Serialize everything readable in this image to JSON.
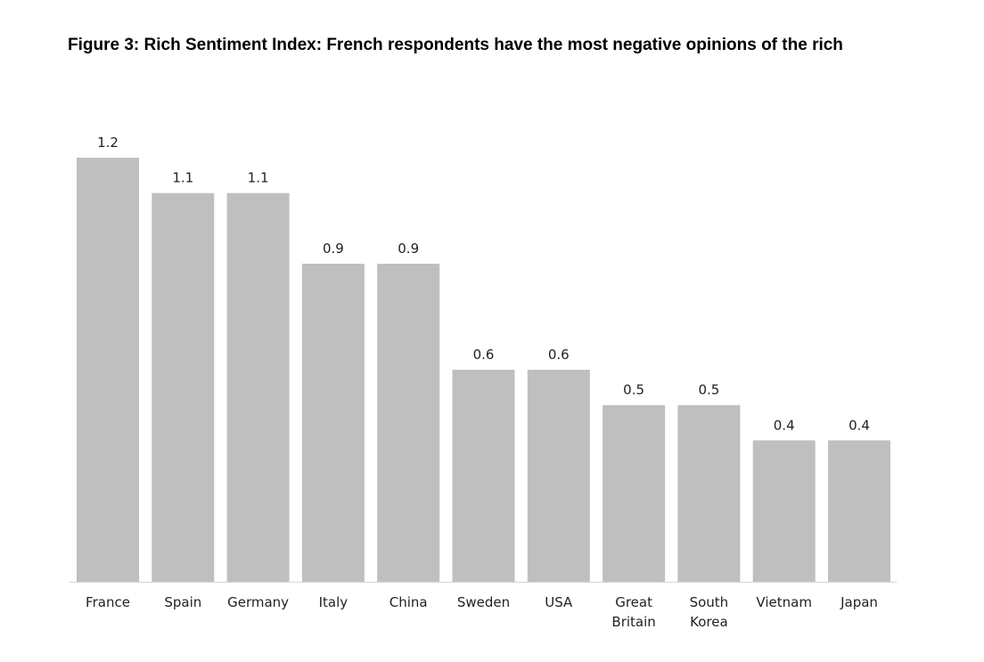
{
  "figure": {
    "title": "Figure 3: Rich Sentiment Index: French respondents have the most negative opinions of the rich"
  },
  "chart_data": {
    "type": "bar",
    "title": "Figure 3: Rich Sentiment Index: French respondents have the most negative opinions of the rich",
    "xlabel": "",
    "ylabel": "",
    "categories": [
      "France",
      "Spain",
      "Germany",
      "Italy",
      "China",
      "Sweden",
      "USA",
      "Great Britain",
      "South Korea",
      "Vietnam",
      "Japan"
    ],
    "category_lines": [
      [
        "France"
      ],
      [
        "Spain"
      ],
      [
        "Germany"
      ],
      [
        "Italy"
      ],
      [
        "China"
      ],
      [
        "Sweden"
      ],
      [
        "USA"
      ],
      [
        "Great",
        "Britain"
      ],
      [
        "South",
        "Korea"
      ],
      [
        "Vietnam"
      ],
      [
        "Japan"
      ]
    ],
    "values": [
      1.2,
      1.1,
      1.1,
      0.9,
      0.9,
      0.6,
      0.6,
      0.5,
      0.5,
      0.4,
      0.4
    ],
    "value_labels": [
      "1.2",
      "1.1",
      "1.1",
      "0.9",
      "0.9",
      "0.6",
      "0.6",
      "0.5",
      "0.5",
      "0.4",
      "0.4"
    ],
    "ylim": [
      0,
      1.2
    ],
    "grid": false,
    "legend": "none",
    "bar_color": "#bfbfbf",
    "axis_color": "#d9d9d9"
  }
}
